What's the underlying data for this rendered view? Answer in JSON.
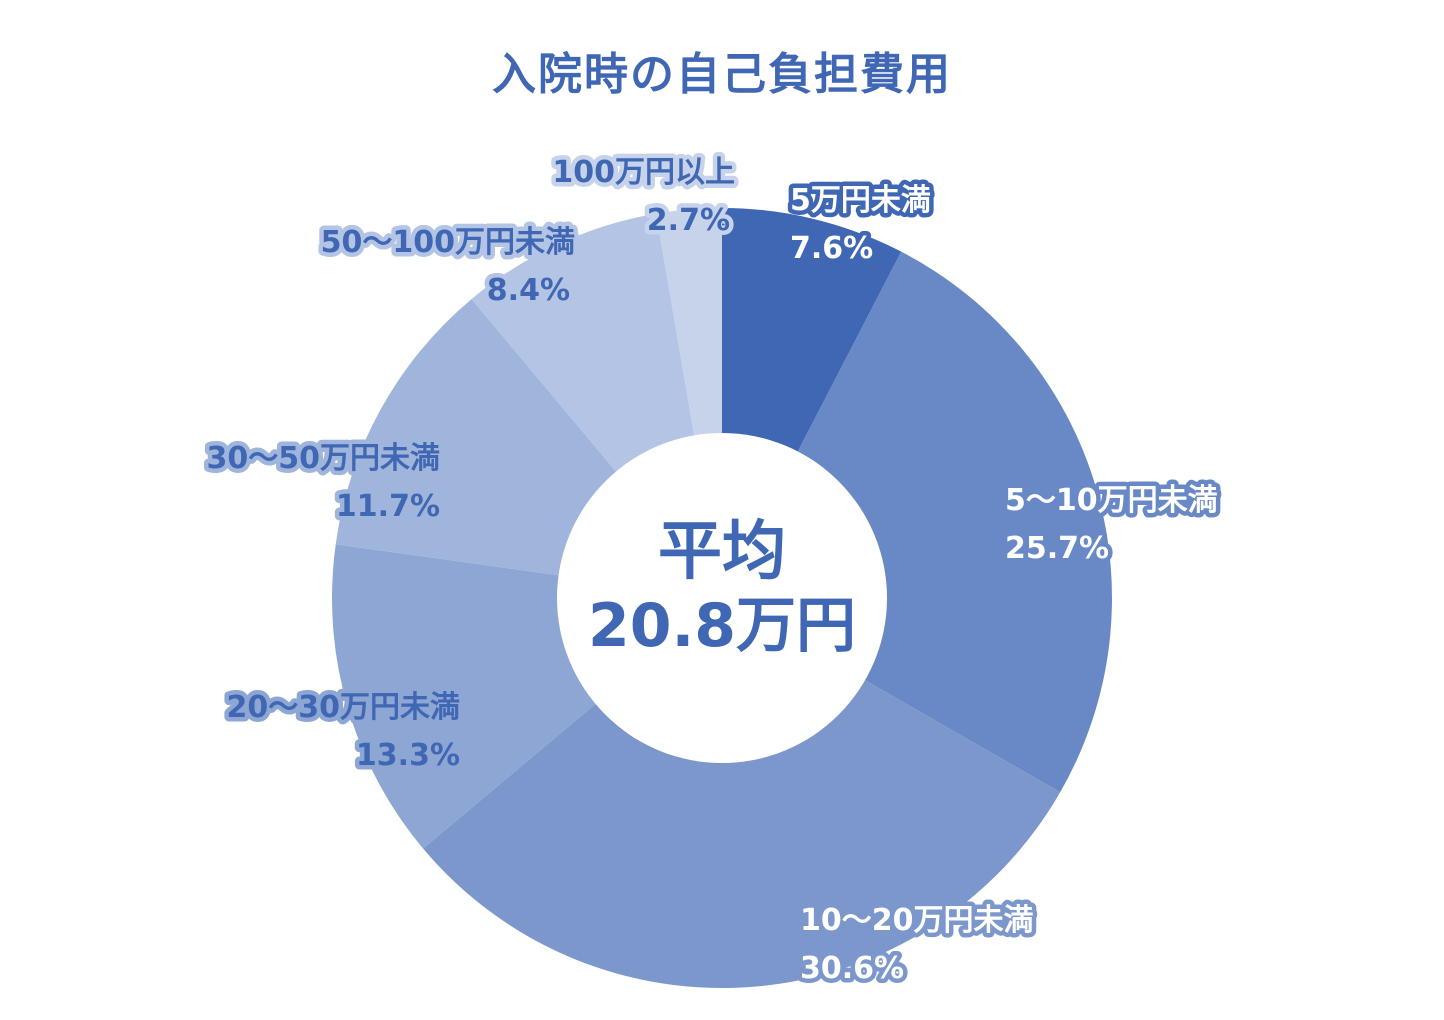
{
  "chart_data": {
    "type": "pie",
    "title": "入院時の自己負担費用",
    "center": {
      "line1": "平均",
      "line2": "20.8万円"
    },
    "slices": [
      {
        "label": "5万円未満",
        "value": 7.6,
        "value_text": "7.6%",
        "color": "#3f67b3"
      },
      {
        "label": "5〜10万円未満",
        "value": 25.7,
        "value_text": "25.7%",
        "color": "#6989c6"
      },
      {
        "label": "10〜20万円未満",
        "value": 30.6,
        "value_text": "30.6%",
        "color": "#7b97cc"
      },
      {
        "label": "20〜30万円未満",
        "value": 13.3,
        "value_text": "13.3%",
        "color": "#8da6d4"
      },
      {
        "label": "30〜50万円未満",
        "value": 11.7,
        "value_text": "11.7%",
        "color": "#a0b5db"
      },
      {
        "label": "50〜100万円未満",
        "value": 8.4,
        "value_text": "8.4%",
        "color": "#b3c4e4"
      },
      {
        "label": "100万円以上",
        "value": 2.7,
        "value_text": "2.7%",
        "color": "#c6d3eb"
      }
    ]
  }
}
